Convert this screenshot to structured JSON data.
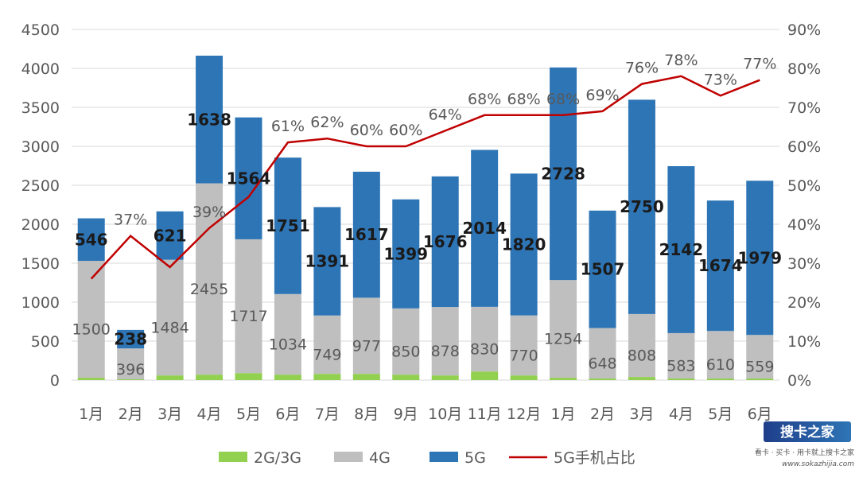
{
  "chart_data": {
    "type": "bar",
    "stacked": true,
    "categories": [
      "1月",
      "2月",
      "3月",
      "4月",
      "5月",
      "6月",
      "7月",
      "8月",
      "9月",
      "10月",
      "11月",
      "12月",
      "1月",
      "2月",
      "3月",
      "4月",
      "5月",
      "6月"
    ],
    "series": [
      {
        "name": "2G/3G",
        "color": "#92d050",
        "values": [
          30,
          10,
          60,
          70,
          90,
          70,
          80,
          80,
          70,
          60,
          110,
          60,
          30,
          20,
          40,
          20,
          20,
          20
        ]
      },
      {
        "name": "4G",
        "color": "#bfbfbf",
        "values": [
          1500,
          396,
          1484,
          2455,
          1717,
          1034,
          749,
          977,
          850,
          878,
          830,
          770,
          1254,
          648,
          808,
          583,
          610,
          559
        ],
        "labels": [
          "1500",
          "396",
          "1484",
          "2455",
          "1717",
          "1034",
          "749",
          "977",
          "850",
          "878",
          "830",
          "770",
          "1254",
          "648",
          "808",
          "583",
          "610",
          "559"
        ]
      },
      {
        "name": "5G",
        "color": "#2e75b6",
        "values": [
          546,
          238,
          621,
          1638,
          1564,
          1751,
          1391,
          1617,
          1399,
          1676,
          2014,
          1820,
          2728,
          1507,
          2750,
          2142,
          1674,
          1979
        ],
        "labels": [
          "546",
          "238",
          "621",
          "1638",
          "1564",
          "1751",
          "1391",
          "1617",
          "1399",
          "1676",
          "2014",
          "1820",
          "2728",
          "1507",
          "2750",
          "2142",
          "1674",
          "1979"
        ]
      },
      {
        "name": "5G手机占比",
        "type": "line",
        "color": "#c00000",
        "axis": "right",
        "values": [
          26,
          37,
          29,
          39,
          47,
          61,
          62,
          60,
          60,
          64,
          68,
          68,
          68,
          69,
          76,
          78,
          73,
          77
        ],
        "labels": [
          "",
          "37%",
          "",
          "39%",
          "",
          "61%",
          "62%",
          "60%",
          "60%",
          "64%",
          "68%",
          "68%",
          "68%",
          "69%",
          "76%",
          "78%",
          "73%",
          "77%"
        ]
      }
    ],
    "y_left": {
      "min": 0,
      "max": 4500,
      "ticks": [
        "0",
        "500",
        "1000",
        "1500",
        "2000",
        "2500",
        "3000",
        "3500",
        "4000",
        "4500"
      ]
    },
    "y_right": {
      "min": 0,
      "max": 90,
      "ticks": [
        "0%",
        "10%",
        "20%",
        "30%",
        "40%",
        "50%",
        "60%",
        "70%",
        "80%",
        "90%"
      ]
    },
    "grid": true,
    "legend_position": "bottom"
  },
  "watermark": {
    "logo_text": "搜卡之家",
    "sub_text": "看卡 · 买卡 · 用卡就上搜卡之家",
    "url": "www.sokazhijia.com"
  }
}
